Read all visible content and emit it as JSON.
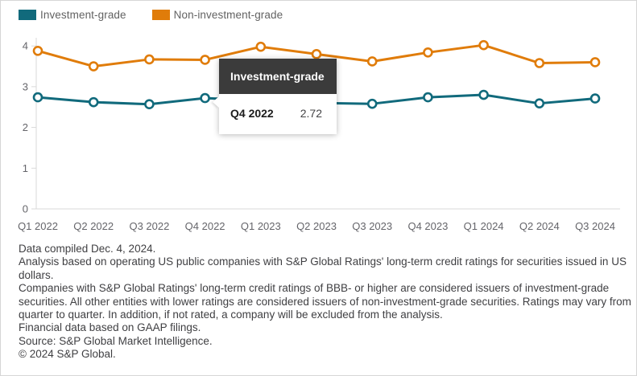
{
  "legend": {
    "items": [
      {
        "label": "Investment-grade",
        "color": "#116a7c"
      },
      {
        "label": "Non-investment-grade",
        "color": "#e07c0a"
      }
    ]
  },
  "tooltip": {
    "title": "Investment-grade",
    "category": "Q4 2022",
    "value": "2.72"
  },
  "chart_data": {
    "type": "line",
    "categories": [
      "Q1 2022",
      "Q2 2022",
      "Q3 2022",
      "Q4 2022",
      "Q1 2023",
      "Q2 2023",
      "Q3 2023",
      "Q4 2023",
      "Q1 2024",
      "Q2 2024",
      "Q3 2024"
    ],
    "series": [
      {
        "name": "Investment-grade",
        "color": "#116a7c",
        "values": [
          2.74,
          2.62,
          2.57,
          2.72,
          2.66,
          2.6,
          2.58,
          2.74,
          2.8,
          2.59,
          2.71
        ]
      },
      {
        "name": "Non-investment-grade",
        "color": "#e07c0a",
        "values": [
          3.88,
          3.5,
          3.67,
          3.66,
          3.98,
          3.8,
          3.62,
          3.84,
          4.02,
          3.58,
          3.6
        ]
      }
    ],
    "title": "",
    "xlabel": "",
    "ylabel": "",
    "yticks": [
      0,
      1,
      2,
      3,
      4
    ],
    "ylim": [
      0,
      4.1
    ],
    "grid": false,
    "legend_position": "top-left",
    "highlight": {
      "series": "Investment-grade",
      "category": "Q4 2022",
      "value": 2.72
    },
    "axis_color": "#d9d9d9",
    "tick_label_color": "#65656a"
  },
  "footnotes": {
    "lines": [
      "Data compiled Dec. 4, 2024.",
      "Analysis based on operating US public companies with S&P Global Ratings' long-term credit ratings for securities issued in US dollars.",
      "Companies with S&P Global Ratings' long-term credit ratings of BBB- or higher are considered issuers of investment-grade securities. All other entities with lower ratings are considered issuers of non-investment-grade securities. Ratings may vary from quarter to quarter. In addition, if not rated, a company will be excluded from the analysis.",
      "Financial data based on GAAP filings.",
      "Source: S&P Global Market Intelligence.",
      "© 2024 S&P Global."
    ]
  }
}
